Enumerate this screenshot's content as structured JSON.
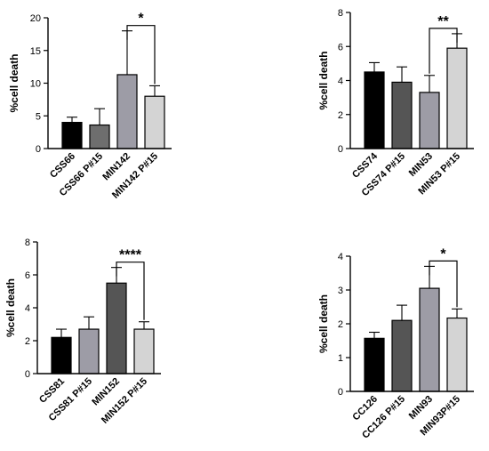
{
  "chart_data": [
    {
      "type": "bar",
      "ylabel": "%cell death",
      "ylim": [
        0,
        20
      ],
      "yticks": [
        0,
        5,
        10,
        15,
        20
      ],
      "categories": [
        "CSS66",
        "CSS66 P#15",
        "MIN142",
        "MIN142 P#15"
      ],
      "values": [
        4.0,
        3.6,
        11.3,
        8.0
      ],
      "errors": [
        0.8,
        2.5,
        6.7,
        1.6
      ],
      "colors": [
        "#000000",
        "#6e6e6e",
        "#9d9ca6",
        "#d4d4d4"
      ],
      "significance": {
        "from": 2,
        "to": 3,
        "label": "*"
      }
    },
    {
      "type": "bar",
      "ylabel": "%cell death",
      "ylim": [
        0,
        8
      ],
      "yticks": [
        0,
        2,
        4,
        6,
        8
      ],
      "categories": [
        "CSS74",
        "CSS74 P#15",
        "MIN53",
        "MIN53 P#15"
      ],
      "values": [
        4.5,
        3.9,
        3.3,
        5.9
      ],
      "errors": [
        0.55,
        0.9,
        1.0,
        0.85
      ],
      "colors": [
        "#000000",
        "#555555",
        "#9d9ca6",
        "#d4d4d4"
      ],
      "significance": {
        "from": 2,
        "to": 3,
        "label": "**"
      }
    },
    {
      "type": "bar",
      "ylabel": "%cell death",
      "ylim": [
        0,
        8
      ],
      "yticks": [
        0,
        2,
        4,
        6,
        8
      ],
      "categories": [
        "CSS81",
        "CSS81 P#15",
        "MIN152",
        "MIN152 P#15"
      ],
      "values": [
        2.2,
        2.7,
        5.5,
        2.7
      ],
      "errors": [
        0.5,
        0.75,
        0.95,
        0.45
      ],
      "colors": [
        "#000000",
        "#9d9ca6",
        "#555555",
        "#d4d4d4"
      ],
      "significance": {
        "from": 2,
        "to": 3,
        "label": "****"
      }
    },
    {
      "type": "bar",
      "ylabel": "%cell death",
      "ylim": [
        0,
        4
      ],
      "yticks": [
        0,
        1,
        2,
        3,
        4
      ],
      "categories": [
        "CC126",
        "CC126 P#15",
        "MIN93",
        "MIN93P#15"
      ],
      "values": [
        1.57,
        2.1,
        3.05,
        2.17
      ],
      "errors": [
        0.18,
        0.45,
        0.65,
        0.27
      ],
      "colors": [
        "#000000",
        "#555555",
        "#9d9ca6",
        "#d4d4d4"
      ],
      "significance": {
        "from": 2,
        "to": 3,
        "label": "*"
      }
    }
  ]
}
